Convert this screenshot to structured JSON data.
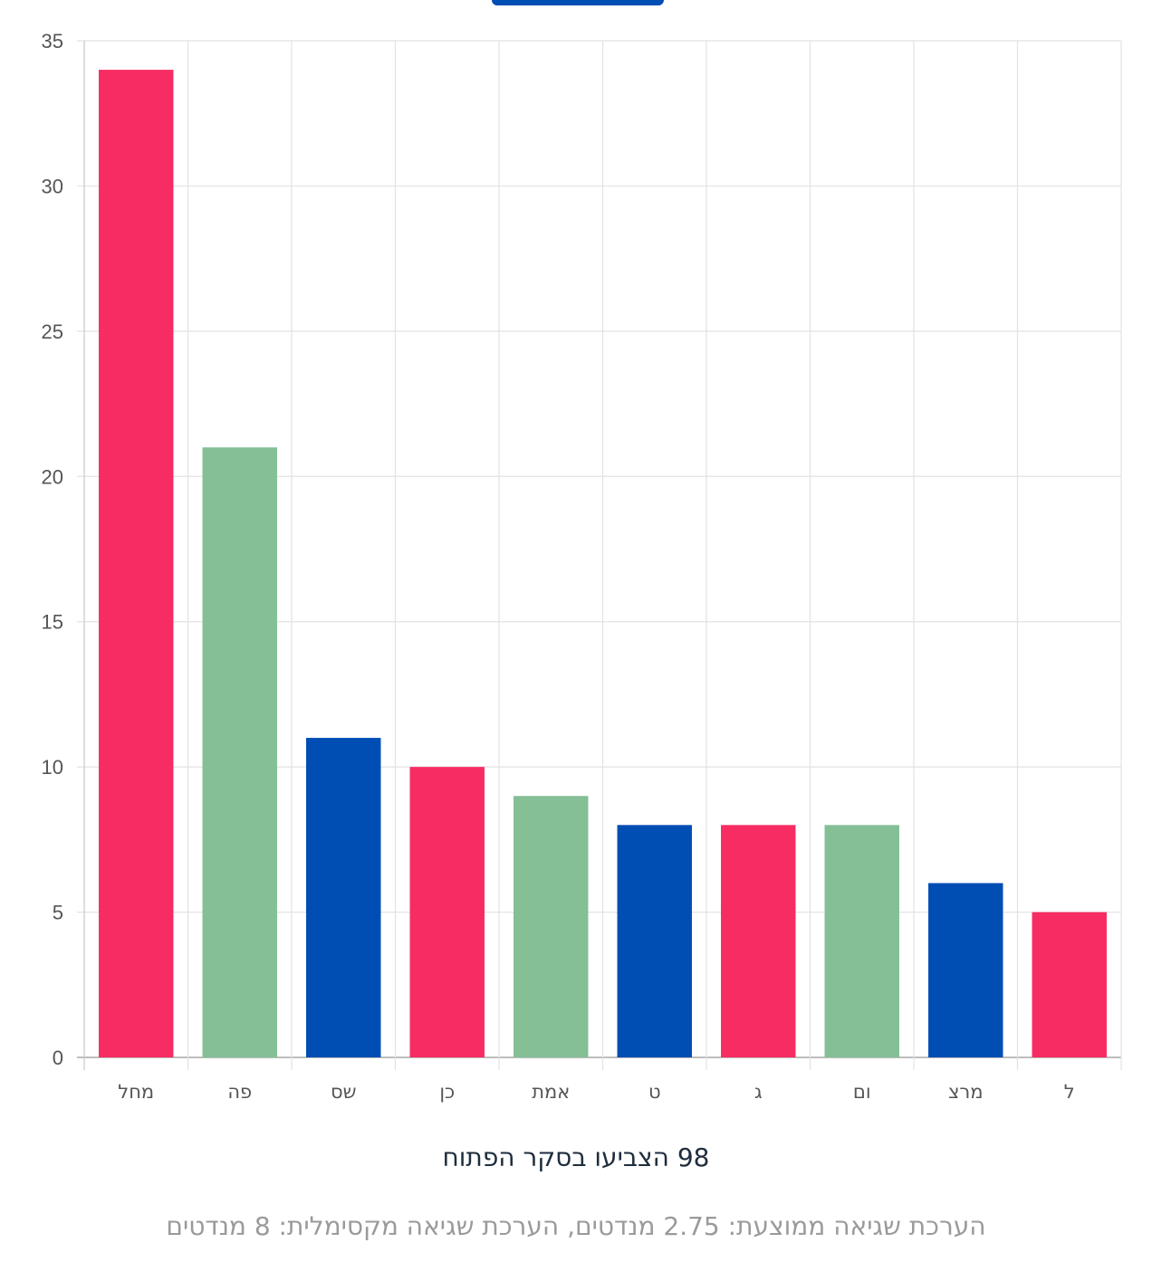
{
  "chart_data": {
    "type": "bar",
    "categories": [
      "מחל",
      "פה",
      "שס",
      "כן",
      "אמת",
      "ט",
      "ג",
      "ום",
      "מרצ",
      "ל"
    ],
    "values": [
      34,
      21,
      11,
      10,
      9,
      8,
      8,
      8,
      6,
      5
    ],
    "colors": [
      "#f72c62",
      "#84bf96",
      "#004db3",
      "#f72c62",
      "#84bf96",
      "#004db3",
      "#f72c62",
      "#84bf96",
      "#004db3",
      "#f72c62"
    ],
    "ylim": [
      0,
      35
    ],
    "yticks": [
      0,
      5,
      10,
      15,
      20,
      25,
      30,
      35
    ],
    "grid": true,
    "xlabel": "98 הצביעו בסקר הפתוח",
    "note": "הערכת שגיאה ממוצעת: 2.75 מנדטים, הערכת שגיאה מקסימלית: 8 מנדטים"
  },
  "tab_color": "#004db3"
}
